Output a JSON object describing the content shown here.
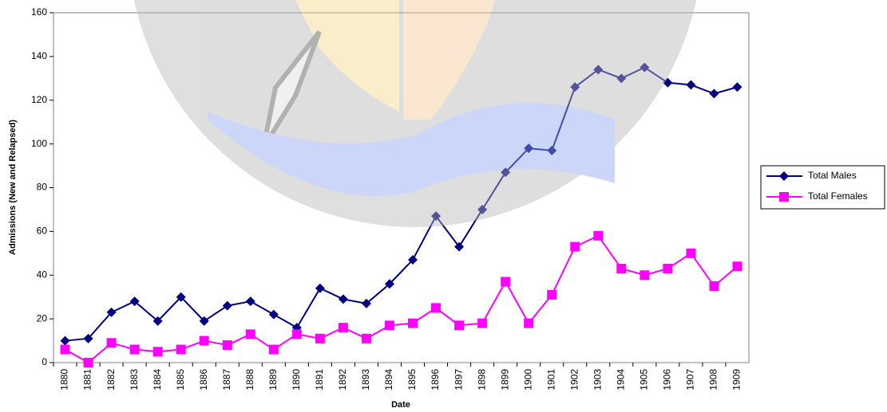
{
  "chart_data": {
    "type": "line",
    "x_label": "Date",
    "y_label": "Admissions (New and Relapsed)",
    "categories": [
      "1880",
      "1881",
      "1882",
      "1883",
      "1884",
      "1885",
      "1886",
      "1887",
      "1888",
      "1889",
      "1890",
      "1891",
      "1892",
      "1893",
      "1894",
      "1895",
      "1896",
      "1897",
      "1898",
      "1899",
      "1900",
      "1901",
      "1902",
      "1903",
      "1904",
      "1905",
      "1906",
      "1907",
      "1908",
      "1909"
    ],
    "series": [
      {
        "name": "Total Males",
        "color": "#000080",
        "marker": "diamond",
        "values": [
          10,
          11,
          23,
          28,
          19,
          30,
          19,
          26,
          28,
          22,
          16,
          34,
          29,
          27,
          36,
          47,
          67,
          53,
          70,
          87,
          98,
          97,
          126,
          134,
          130,
          135,
          128,
          127,
          123,
          126
        ]
      },
      {
        "name": "Total Females",
        "color": "#ff00ff",
        "marker": "square",
        "values": [
          6,
          0,
          9,
          6,
          5,
          6,
          10,
          8,
          13,
          6,
          13,
          11,
          16,
          11,
          17,
          18,
          25,
          17,
          18,
          37,
          18,
          31,
          53,
          58,
          43,
          40,
          43,
          50,
          35,
          44
        ]
      }
    ],
    "ylim": [
      0,
      160
    ],
    "yticks": [
      0,
      20,
      40,
      60,
      80,
      100,
      120,
      140,
      160
    ],
    "legend": "right"
  }
}
